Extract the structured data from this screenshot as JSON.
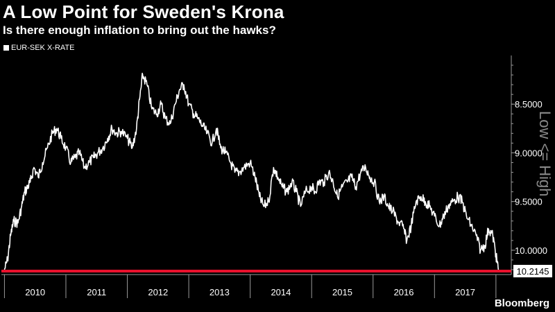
{
  "header": {
    "title": "A Low Point for Sweden's Krona",
    "subtitle": "Is there enough inflation to bring out the hawks?"
  },
  "legend": {
    "label": "EUR-SEK X-RATE"
  },
  "annotation": {
    "side_label": "Low <= High"
  },
  "brand": {
    "name": "Bloomberg"
  },
  "colors": {
    "background": "#000000",
    "line": "#ffffff",
    "reference_line": "#e8112d",
    "axis": "#9a9a9a"
  },
  "chart_data": {
    "type": "line",
    "title": "A Low Point for Sweden's Krona",
    "subtitle": "Is there enough inflation to bring out the hawks?",
    "xlabel": "",
    "ylabel": "Low <= High",
    "y_inverted": true,
    "ylim": [
      10.25,
      8.0
    ],
    "y_ticks": [
      8.5,
      9.0,
      9.5,
      10.0
    ],
    "y_tick_labels": [
      "8.5000",
      "9.0000",
      "9.5000",
      "10.0000"
    ],
    "x_categories": [
      "2010",
      "2011",
      "2012",
      "2013",
      "2014",
      "2015",
      "2016",
      "2017"
    ],
    "xlim": [
      2009.95,
      2018.25
    ],
    "reference_line": {
      "value": 10.2145,
      "label": "10.2145"
    },
    "series": [
      {
        "name": "EUR-SEK X-RATE",
        "x": [
          2010.0,
          2010.05,
          2010.1,
          2010.15,
          2010.22,
          2010.28,
          2010.33,
          2010.38,
          2010.42,
          2010.48,
          2010.55,
          2010.62,
          2010.7,
          2010.78,
          2010.85,
          2010.92,
          2011.0,
          2011.08,
          2011.15,
          2011.22,
          2011.3,
          2011.38,
          2011.45,
          2011.52,
          2011.6,
          2011.68,
          2011.75,
          2011.82,
          2011.9,
          2012.0,
          2012.08,
          2012.15,
          2012.2,
          2012.25,
          2012.32,
          2012.4,
          2012.48,
          2012.55,
          2012.62,
          2012.7,
          2012.78,
          2012.85,
          2012.92,
          2013.0,
          2013.08,
          2013.15,
          2013.22,
          2013.3,
          2013.38,
          2013.45,
          2013.52,
          2013.6,
          2013.68,
          2013.75,
          2013.82,
          2013.9,
          2014.0,
          2014.08,
          2014.15,
          2014.22,
          2014.3,
          2014.38,
          2014.45,
          2014.52,
          2014.6,
          2014.68,
          2014.75,
          2014.82,
          2014.9,
          2015.0,
          2015.05,
          2015.12,
          2015.2,
          2015.28,
          2015.35,
          2015.42,
          2015.5,
          2015.58,
          2015.65,
          2015.72,
          2015.8,
          2015.88,
          2015.95,
          2016.02,
          2016.1,
          2016.18,
          2016.25,
          2016.32,
          2016.4,
          2016.48,
          2016.55,
          2016.62,
          2016.7,
          2016.78,
          2016.85,
          2016.92,
          2017.0,
          2017.08,
          2017.15,
          2017.22,
          2017.3,
          2017.38,
          2017.45,
          2017.52,
          2017.6,
          2017.68,
          2017.75,
          2017.82,
          2017.88,
          2017.95,
          2018.0,
          2018.04
        ],
        "values": [
          10.2,
          10.1,
          9.85,
          9.7,
          9.72,
          9.55,
          9.4,
          9.35,
          9.3,
          9.15,
          9.25,
          9.1,
          8.95,
          8.8,
          8.75,
          8.85,
          8.95,
          9.1,
          9.05,
          9.0,
          9.15,
          9.1,
          9.05,
          9.0,
          8.95,
          8.85,
          8.75,
          8.8,
          8.78,
          8.85,
          8.95,
          8.75,
          8.45,
          8.2,
          8.3,
          8.55,
          8.6,
          8.5,
          8.65,
          8.7,
          8.5,
          8.35,
          8.3,
          8.5,
          8.6,
          8.65,
          8.72,
          8.8,
          8.9,
          8.75,
          8.95,
          9.0,
          9.1,
          9.2,
          9.2,
          9.15,
          9.1,
          9.25,
          9.45,
          9.55,
          9.5,
          9.15,
          9.25,
          9.35,
          9.4,
          9.3,
          9.4,
          9.55,
          9.4,
          9.35,
          9.4,
          9.3,
          9.3,
          9.2,
          9.3,
          9.45,
          9.35,
          9.3,
          9.25,
          9.35,
          9.2,
          9.15,
          9.25,
          9.3,
          9.5,
          9.45,
          9.55,
          9.6,
          9.7,
          9.75,
          9.9,
          9.75,
          9.5,
          9.45,
          9.5,
          9.55,
          9.65,
          9.75,
          9.65,
          9.55,
          9.5,
          9.45,
          9.5,
          9.65,
          9.75,
          9.85,
          10.0,
          9.95,
          9.78,
          9.85,
          10.05,
          10.2
        ]
      }
    ]
  }
}
